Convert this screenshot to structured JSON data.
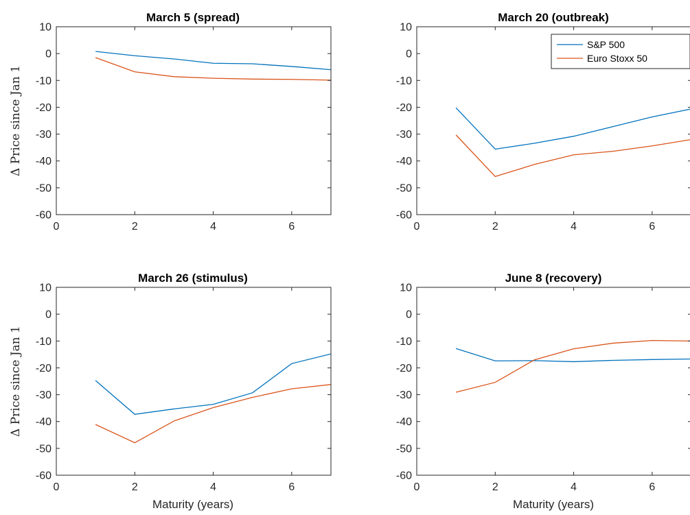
{
  "figure": {
    "ylabel_text": "Δ Price since Jan 1",
    "xlabel_text": "Maturity (years)"
  },
  "series_styles": [
    {
      "name": "S&P 500",
      "color": "#0072BD"
    },
    {
      "name": "Euro Stoxx 50",
      "color": "#D95319"
    }
  ],
  "chart_data": [
    {
      "type": "line",
      "title": "March 5 (spread)",
      "xlabel": "",
      "ylabel": "Δ Price since Jan 1",
      "xlim": [
        0,
        7
      ],
      "ylim": [
        -60,
        10
      ],
      "xticks": [
        0,
        2,
        4,
        6
      ],
      "yticks": [
        10,
        0,
        -10,
        -20,
        -30,
        -40,
        -50,
        -60
      ],
      "legend": null,
      "series": [
        {
          "x": [
            1,
            2,
            3,
            4,
            5,
            6,
            7
          ],
          "values": [
            0.8,
            -0.8,
            -2.0,
            -3.6,
            -3.8,
            -4.8,
            -6.0
          ]
        },
        {
          "x": [
            1,
            2,
            3,
            4,
            5,
            6,
            7
          ],
          "values": [
            -1.5,
            -6.8,
            -8.6,
            -9.2,
            -9.5,
            -9.6,
            -9.9
          ]
        }
      ]
    },
    {
      "type": "line",
      "title": "March 20 (outbreak)",
      "xlabel": "",
      "ylabel": "",
      "xlim": [
        0,
        7
      ],
      "ylim": [
        -60,
        10
      ],
      "xticks": [
        0,
        2,
        4,
        6
      ],
      "yticks": [
        10,
        0,
        -10,
        -20,
        -30,
        -40,
        -50,
        -60
      ],
      "legend": "top-right",
      "series": [
        {
          "name": "S&P 500",
          "x": [
            1,
            2,
            3,
            4,
            5,
            6,
            7
          ],
          "values": [
            -20.2,
            -35.6,
            -33.4,
            -30.8,
            -27.2,
            -23.6,
            -20.6
          ]
        },
        {
          "name": "Euro Stoxx 50",
          "x": [
            1,
            2,
            3,
            4,
            5,
            6,
            7
          ],
          "values": [
            -30.3,
            -45.8,
            -41.3,
            -37.7,
            -36.4,
            -34.4,
            -32.0
          ]
        }
      ]
    },
    {
      "type": "line",
      "title": "March 26 (stimulus)",
      "xlabel": "Maturity (years)",
      "ylabel": "Δ Price since Jan 1",
      "xlim": [
        0,
        7
      ],
      "ylim": [
        -60,
        10
      ],
      "xticks": [
        0,
        2,
        4,
        6
      ],
      "yticks": [
        10,
        0,
        -10,
        -20,
        -30,
        -40,
        -50,
        -60
      ],
      "legend": null,
      "series": [
        {
          "x": [
            1,
            2,
            3,
            4,
            5,
            6,
            7
          ],
          "values": [
            -24.7,
            -37.3,
            -35.3,
            -33.6,
            -29.3,
            -18.4,
            -14.8
          ]
        },
        {
          "x": [
            1,
            2,
            3,
            4,
            5,
            6,
            7
          ],
          "values": [
            -41.1,
            -47.9,
            -39.8,
            -34.8,
            -31.0,
            -27.8,
            -26.2
          ]
        }
      ]
    },
    {
      "type": "line",
      "title": "June 8 (recovery)",
      "xlabel": "Maturity (years)",
      "ylabel": "",
      "xlim": [
        0,
        7
      ],
      "ylim": [
        -60,
        10
      ],
      "xticks": [
        0,
        2,
        4,
        6
      ],
      "yticks": [
        10,
        0,
        -10,
        -20,
        -30,
        -40,
        -50,
        -60
      ],
      "legend": null,
      "series": [
        {
          "x": [
            1,
            2,
            3,
            4,
            5,
            6,
            7
          ],
          "values": [
            -12.8,
            -17.4,
            -17.3,
            -17.7,
            -17.2,
            -16.9,
            -16.7
          ]
        },
        {
          "x": [
            1,
            2,
            3,
            4,
            5,
            6,
            7
          ],
          "values": [
            -29.1,
            -25.4,
            -17.0,
            -12.9,
            -10.8,
            -9.8,
            -10.0
          ]
        }
      ]
    }
  ]
}
